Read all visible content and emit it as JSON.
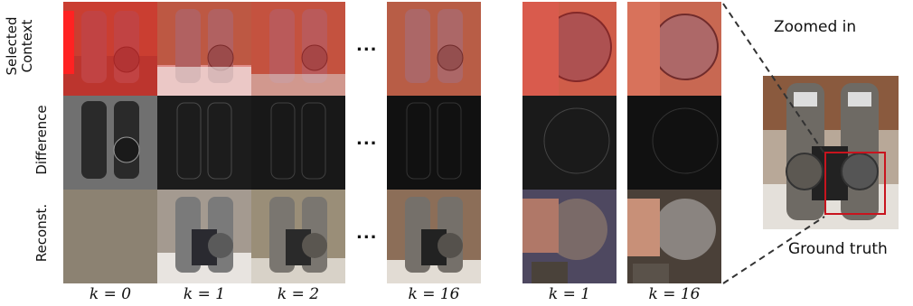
{
  "figure": {
    "row_labels": {
      "context": [
        "Selected",
        "Context"
      ],
      "difference": "Difference",
      "reconst": "Reconst."
    },
    "ellipsis": "...",
    "k_labels": {
      "k0": "k = 0",
      "k1": "k = 1",
      "k2": "k = 2",
      "k16": "k = 16",
      "zoom_k1": "k = 1",
      "zoom_k16": "k = 16"
    },
    "zoomed_label": "Zoomed in",
    "gt_label": "Ground truth",
    "colors": {
      "context_overlay": "#ff1a1a",
      "zoom_box": "#c8141e",
      "dashed_line": "#333333"
    },
    "icons": [
      "parking-meter-photo"
    ]
  }
}
